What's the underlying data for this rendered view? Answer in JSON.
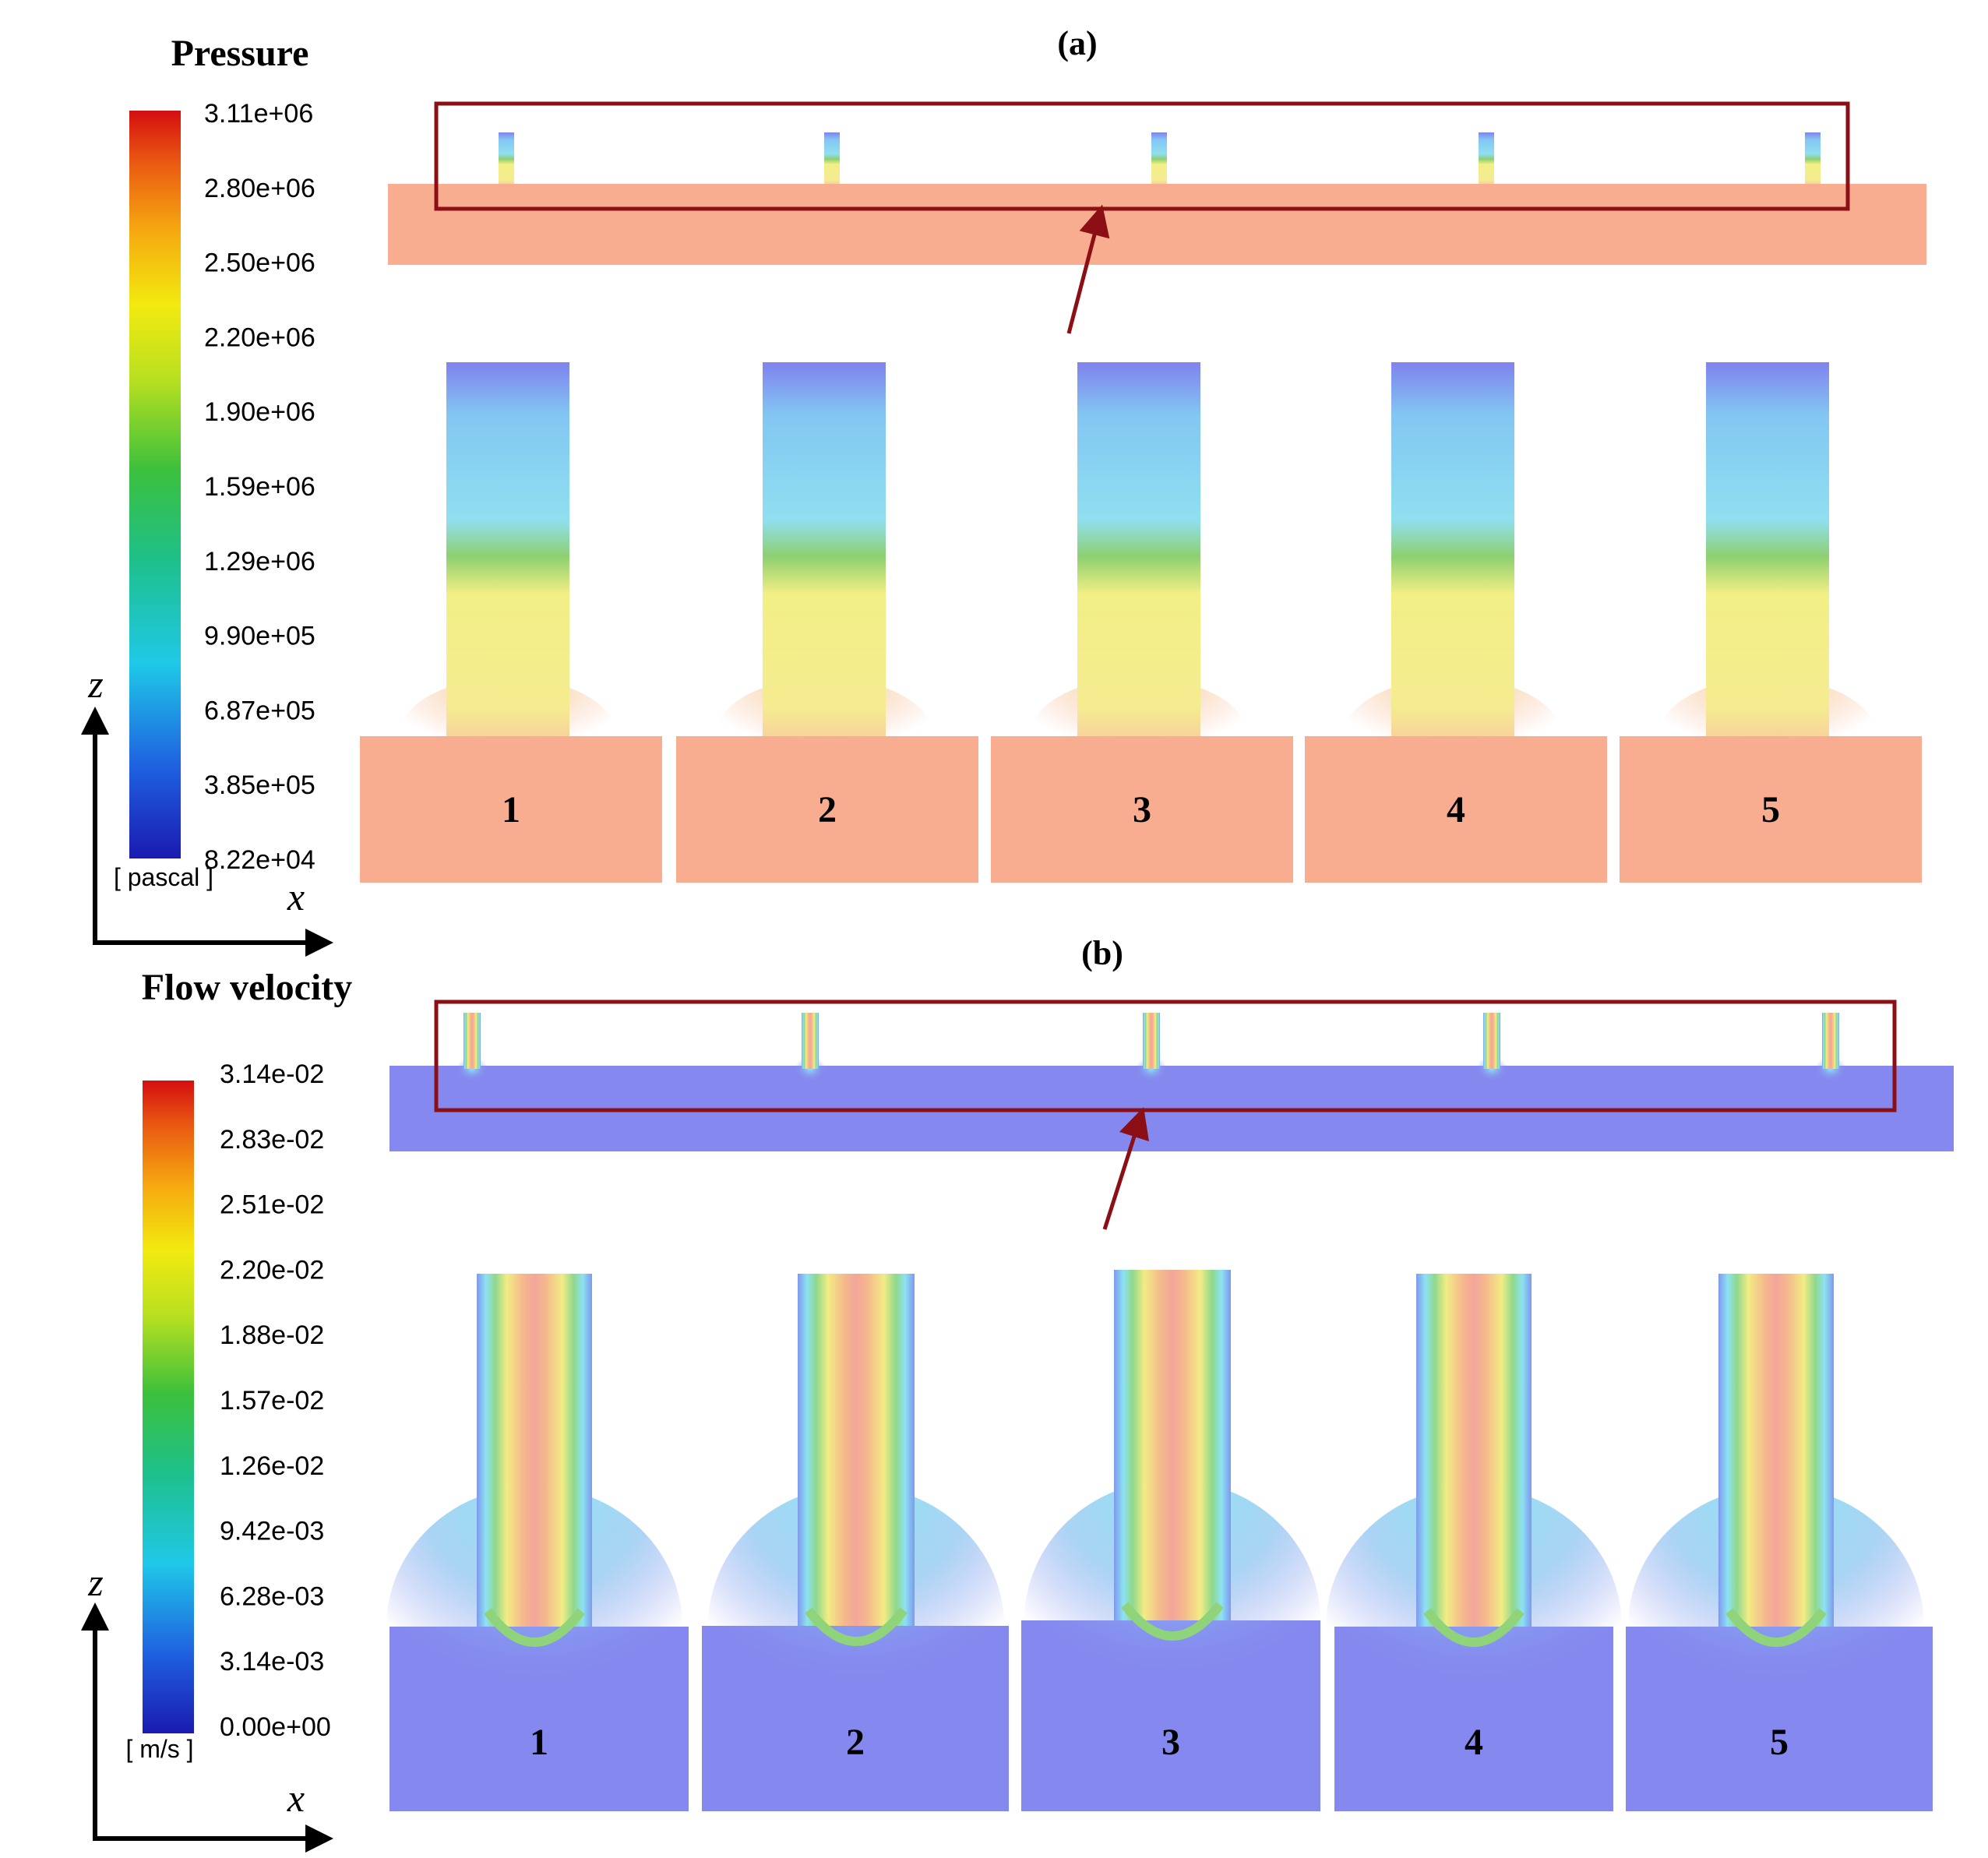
{
  "panel_a": {
    "label": "(a)",
    "legend_title": "Pressure",
    "unit": "[ pascal ]",
    "ticks": [
      "3.11e+06",
      "2.80e+06",
      "2.50e+06",
      "2.20e+06",
      "1.90e+06",
      "1.59e+06",
      "1.29e+06",
      "9.90e+05",
      "6.87e+05",
      "3.85e+05",
      "8.22e+04"
    ],
    "z_axis": "z",
    "x_axis": "x",
    "channels": [
      "1",
      "2",
      "3",
      "4",
      "5"
    ]
  },
  "panel_b": {
    "label": "(b)",
    "legend_title": "Flow velocity",
    "unit": "[ m/s ]",
    "ticks": [
      "3.14e-02",
      "2.83e-02",
      "2.51e-02",
      "2.20e-02",
      "1.88e-02",
      "1.57e-02",
      "1.26e-02",
      "9.42e-03",
      "6.28e-03",
      "3.14e-03",
      "0.00e+00"
    ],
    "z_axis": "z",
    "x_axis": "x",
    "channels": [
      "1",
      "2",
      "3",
      "4",
      "5"
    ]
  },
  "colors": {
    "zoom_box": "#8b0f14",
    "pressure_bulk": "#f8ad90",
    "velocity_bulk": "#8589ef"
  }
}
